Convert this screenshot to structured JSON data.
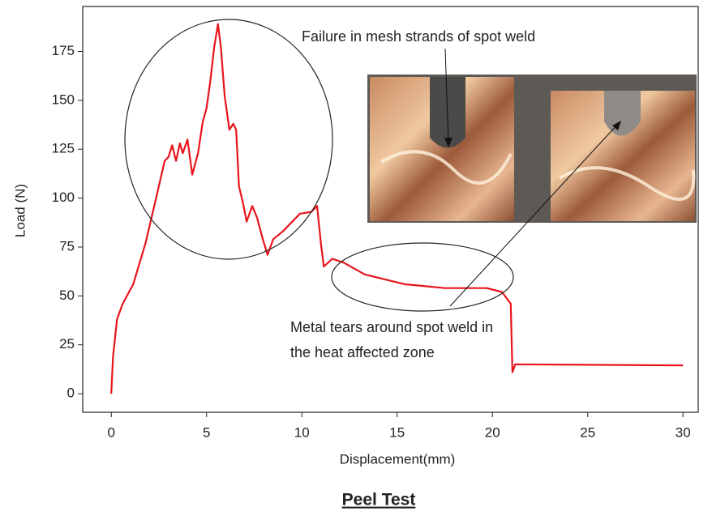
{
  "chart_data": {
    "type": "line",
    "title": "Peel Test",
    "xlabel": "Displacement(mm)",
    "ylabel": "Load (N)",
    "x": [
      0,
      0.09,
      0.3,
      0.6,
      1.15,
      1.8,
      2.4,
      2.8,
      3.0,
      3.2,
      3.4,
      3.6,
      3.75,
      4.0,
      4.25,
      4.55,
      4.8,
      5.0,
      5.2,
      5.4,
      5.6,
      5.75,
      5.95,
      6.2,
      6.4,
      6.55,
      6.7,
      6.9,
      7.1,
      7.4,
      7.65,
      7.95,
      8.2,
      8.5,
      9.0,
      9.9,
      10.5,
      10.8,
      11.0,
      11.15,
      11.6,
      12.2,
      13.3,
      15.4,
      17.5,
      19.7,
      20.5,
      20.96,
      21.05,
      21.2,
      30
    ],
    "values": [
      0,
      19,
      38,
      46,
      56,
      77,
      102,
      119,
      121,
      127,
      119,
      128,
      123,
      130,
      112,
      123,
      139,
      146,
      160,
      177,
      189,
      177,
      152,
      135,
      138,
      135,
      106,
      98,
      88,
      96,
      90,
      79,
      71,
      79,
      83,
      92,
      93,
      96,
      77,
      65,
      69,
      67,
      61,
      56,
      54,
      54,
      52,
      46,
      11,
      15,
      14.5
    ],
    "color": "#e8141b",
    "xlim": [
      -1.5,
      30.8
    ],
    "ylim": [
      -9.5,
      198
    ],
    "xticks": [
      0,
      5,
      10,
      15,
      20,
      25,
      30
    ],
    "yticks": [
      0,
      25,
      50,
      75,
      100,
      125,
      150,
      175
    ],
    "annotations": [
      "Failure in mesh strands of spot weld",
      "Metal tears around spot weld in",
      "the heat affected zone"
    ]
  }
}
